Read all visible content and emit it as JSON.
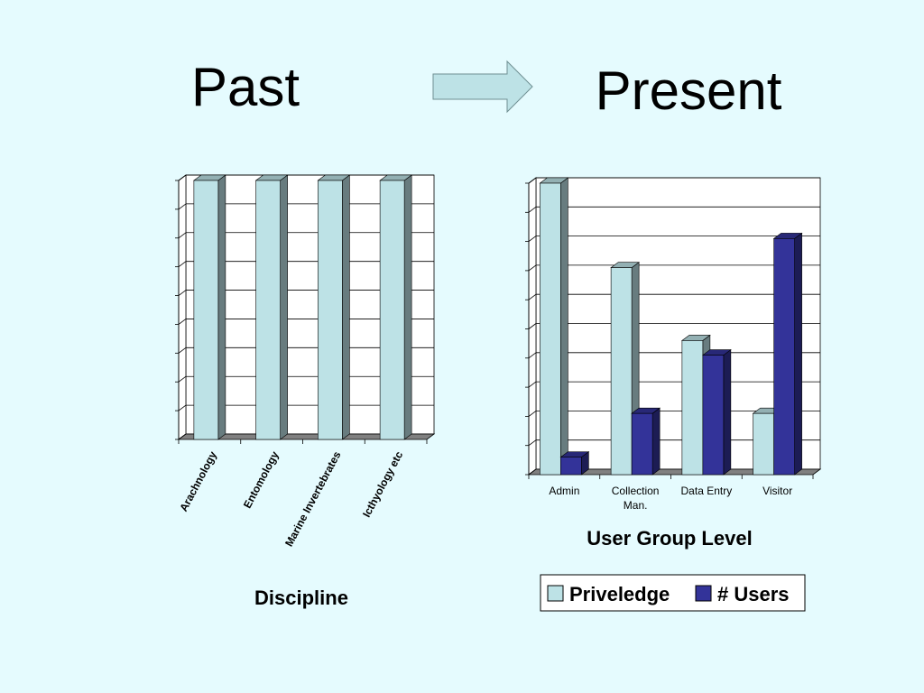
{
  "slide": {
    "left_heading": "Past",
    "right_heading": "Present",
    "arrow_icon": "right-arrow-icon"
  },
  "colors": {
    "background": "#e5fbfe",
    "priveledge": "#bde2e6",
    "users": "#333399",
    "grid": "#000000",
    "floor": "#808080"
  },
  "chart_data": [
    {
      "type": "bar",
      "title": "",
      "xlabel": "Discipline",
      "ylabel": "",
      "categories": [
        "Arachnology",
        "Entomology",
        "Marine Invertebrates",
        "Icthyology etc"
      ],
      "series": [
        {
          "values": [
            10,
            10,
            10,
            10
          ]
        }
      ],
      "ylim": [
        0,
        10
      ],
      "grid": true,
      "legend": "none",
      "tick_label_rotation": "rotated"
    },
    {
      "type": "bar",
      "title": "",
      "xlabel": "User Group Level",
      "ylabel": "",
      "categories": [
        "Admin",
        "Collection Man.",
        "Data Entry",
        "Visitor"
      ],
      "series": [
        {
          "name": "Priveledge",
          "values": [
            10,
            7.1,
            4.6,
            2.1
          ]
        },
        {
          "name": "# Users",
          "values": [
            0.6,
            2.1,
            4.1,
            8.1
          ]
        }
      ],
      "ylim": [
        0,
        10
      ],
      "grid": true,
      "legend": "bottom"
    }
  ]
}
